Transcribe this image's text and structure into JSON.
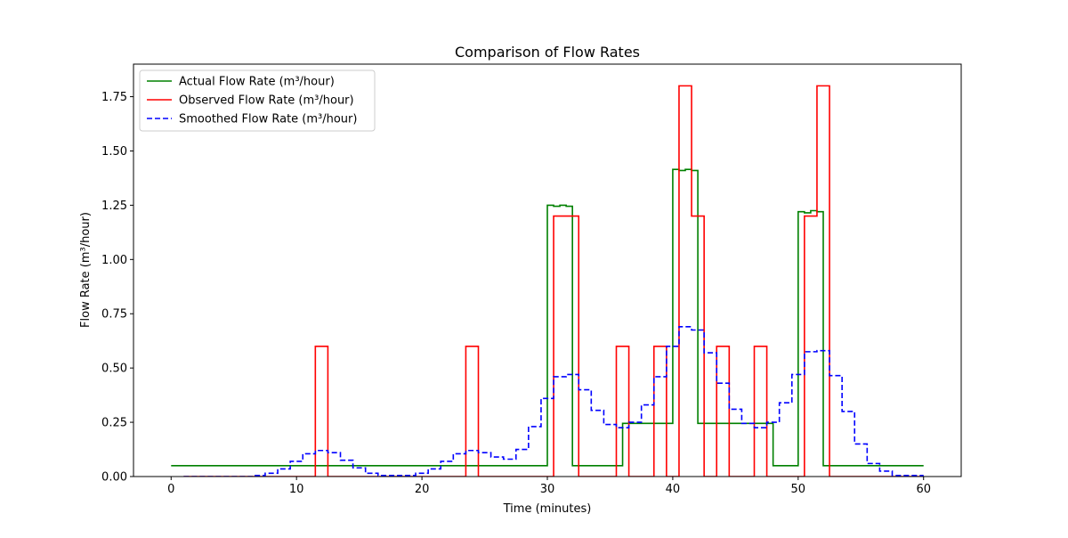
{
  "chart_data": {
    "type": "line",
    "title": "Comparison of Flow Rates",
    "xlabel": "Time (minutes)",
    "ylabel": "Flow Rate (m³/hour)",
    "xlim": [
      -3,
      63
    ],
    "ylim": [
      0,
      1.9
    ],
    "xticks": [
      0,
      10,
      20,
      30,
      40,
      50,
      60
    ],
    "yticks": [
      0.0,
      0.25,
      0.5,
      0.75,
      1.0,
      1.25,
      1.5,
      1.75
    ],
    "xtick_labels": [
      "0",
      "10",
      "20",
      "30",
      "40",
      "50",
      "60"
    ],
    "ytick_labels": [
      "0.00",
      "0.25",
      "0.50",
      "0.75",
      "1.00",
      "1.25",
      "1.50",
      "1.75"
    ],
    "grid": false,
    "legend_position": "top-left",
    "step": "post",
    "series": [
      {
        "name": "Actual Flow Rate (m³/hour)",
        "color": "#008000",
        "dash": "solid",
        "x": [
          0,
          30,
          30.5,
          31,
          31.5,
          32,
          36,
          40,
          40.5,
          41,
          41.5,
          42,
          42.5,
          48,
          50,
          50.5,
          51,
          51.5,
          52,
          60
        ],
        "y": [
          0.05,
          1.25,
          1.245,
          1.25,
          1.245,
          0.05,
          0.245,
          1.415,
          1.41,
          1.415,
          1.41,
          0.245,
          0.245,
          0.05,
          1.22,
          1.215,
          1.225,
          1.22,
          0.05,
          0.05
        ]
      },
      {
        "name": "Observed Flow Rate (m³/hour)",
        "color": "#ff0000",
        "dash": "solid",
        "x": [
          1,
          11.5,
          12.5,
          23.5,
          24.5,
          30.5,
          32.5,
          35.5,
          36.5,
          38.5,
          39.5,
          40.5,
          41.5,
          42.5,
          43.5,
          44.5,
          46.5,
          47.5,
          50.5,
          51.5,
          52.5,
          60
        ],
        "y": [
          0,
          0.6,
          0,
          0.6,
          0,
          1.2,
          0,
          0.6,
          0,
          0.6,
          0,
          1.8,
          1.2,
          0,
          0.6,
          0,
          0.6,
          0,
          1.2,
          1.8,
          0,
          0
        ]
      },
      {
        "name": "Smoothed Flow Rate (m³/hour)",
        "color": "#0000ff",
        "dash": "dashed",
        "x": [
          1,
          6.5,
          7.5,
          8.5,
          9.5,
          10.5,
          11.5,
          12.5,
          13.5,
          14.5,
          15.5,
          16.5,
          19.5,
          20.5,
          21.5,
          22.5,
          23.5,
          24.5,
          25.5,
          26.5,
          27.5,
          28.5,
          29.5,
          30.5,
          31.5,
          32.5,
          33.5,
          34.5,
          35.5,
          36.5,
          37.5,
          38.5,
          39.5,
          40.5,
          41.5,
          42.5,
          43.5,
          44.5,
          45.5,
          46.5,
          47.5,
          48.5,
          49.5,
          50.5,
          51.5,
          52.5,
          53.5,
          54.5,
          55.5,
          56.5,
          57.5,
          60
        ],
        "y": [
          0,
          0.005,
          0.015,
          0.035,
          0.07,
          0.105,
          0.12,
          0.11,
          0.075,
          0.04,
          0.015,
          0.005,
          0.015,
          0.035,
          0.07,
          0.105,
          0.12,
          0.11,
          0.09,
          0.08,
          0.125,
          0.23,
          0.36,
          0.46,
          0.47,
          0.4,
          0.305,
          0.24,
          0.225,
          0.25,
          0.33,
          0.46,
          0.6,
          0.69,
          0.675,
          0.57,
          0.43,
          0.31,
          0.245,
          0.225,
          0.25,
          0.34,
          0.47,
          0.575,
          0.58,
          0.465,
          0.3,
          0.15,
          0.06,
          0.025,
          0.005,
          0.005
        ]
      }
    ]
  }
}
